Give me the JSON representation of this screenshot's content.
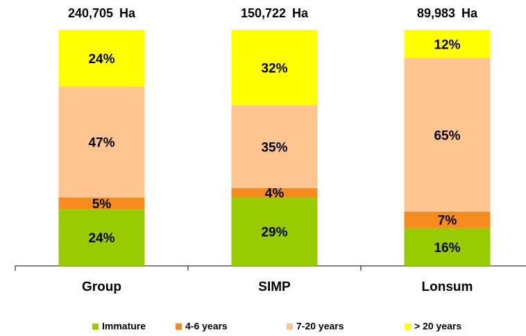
{
  "chart_data": {
    "type": "stacked_bar",
    "categories": [
      "Group",
      "SIMP",
      "Lonsum"
    ],
    "totals": [
      "240,705 Ha",
      "150,722 Ha",
      "89,983 Ha"
    ],
    "series": [
      {
        "name": "Immature",
        "color": "#99cc00",
        "values": [
          24,
          29,
          16
        ],
        "value_labels": [
          "24%",
          "29%",
          "16%"
        ]
      },
      {
        "name": "4-6 years",
        "color": "#f88b1e",
        "values": [
          5,
          4,
          7
        ],
        "value_labels": [
          "5%",
          "4%",
          "7%"
        ]
      },
      {
        "name": "7-20 years",
        "color": "#ffc591",
        "values": [
          47,
          35,
          65
        ],
        "value_labels": [
          "47%",
          "35%",
          "65%"
        ]
      },
      {
        "name": "> 20 years",
        "color": "#ffff00",
        "values": [
          24,
          32,
          12
        ],
        "value_labels": [
          "24%",
          "32%",
          "12%"
        ]
      }
    ],
    "ylim": [
      0,
      100
    ]
  }
}
